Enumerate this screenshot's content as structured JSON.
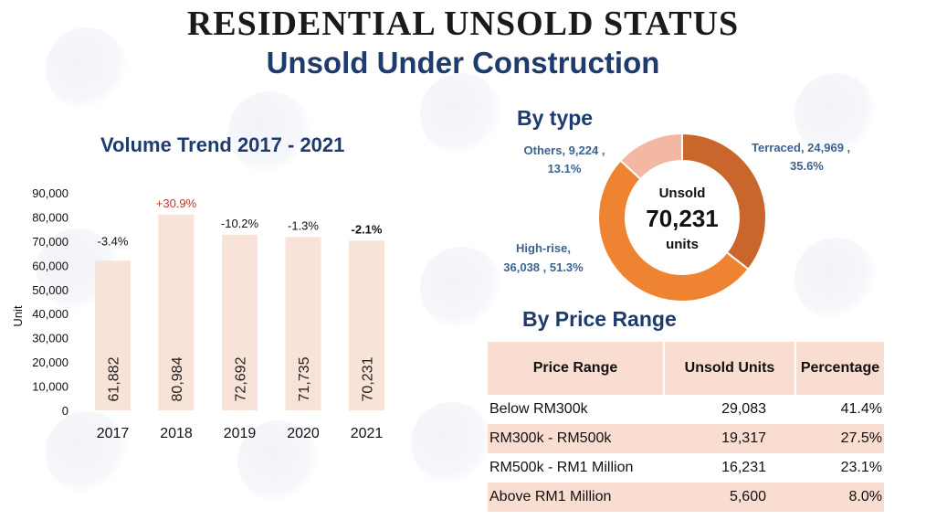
{
  "header": {
    "title": "RESIDENTIAL UNSOLD STATUS",
    "subtitle": "Unsold Under Construction"
  },
  "chart_data": [
    {
      "type": "bar",
      "title": "Volume Trend 2017 - 2021",
      "ylabel": "Unit",
      "categories": [
        "2017",
        "2018",
        "2019",
        "2020",
        "2021"
      ],
      "values": [
        61882,
        80984,
        72692,
        71735,
        70231
      ],
      "value_labels": [
        "61,882",
        "80,984",
        "72,692",
        "71,735",
        "70,231"
      ],
      "growth_labels": [
        "-3.4%",
        "+30.9%",
        "-10.2%",
        "-1.3%",
        "-2.1%"
      ],
      "ylim": [
        0,
        90000
      ],
      "yticks": [
        0,
        10000,
        20000,
        30000,
        40000,
        50000,
        60000,
        70000,
        80000,
        90000
      ],
      "ytick_labels": [
        "0",
        "10,000",
        "20,000",
        "30,000",
        "40,000",
        "50,000",
        "60,000",
        "70,000",
        "80,000",
        "90,000"
      ],
      "grid": false,
      "bar_color": "#f8e3d8",
      "positive_color": "#c0392b"
    },
    {
      "type": "pie",
      "title": "By type",
      "donut": true,
      "center_label": {
        "top": "Unsold",
        "value": "70,231",
        "bottom": "units"
      },
      "slices": [
        {
          "label": "Terraced",
          "value": 24969,
          "value_label": "24,969",
          "percent": "35.6%",
          "color": "#c8662c"
        },
        {
          "label": "High-rise",
          "value": 36038,
          "value_label": "36,038",
          "percent": "51.3%",
          "color": "#ee8332"
        },
        {
          "label": "Others",
          "value": 9224,
          "value_label": "9,224",
          "percent": "13.1%",
          "color": "#f3b8a1"
        }
      ]
    }
  ],
  "price_range": {
    "title": "By Price Range",
    "headers": [
      "Price Range",
      "Unsold Units",
      "Percentage"
    ],
    "rows": [
      {
        "range": "Below RM300k",
        "units": "29,083",
        "pct": "41.4%"
      },
      {
        "range": "RM300k - RM500k",
        "units": "19,317",
        "pct": "27.5%"
      },
      {
        "range": "RM500k - RM1 Million",
        "units": "16,231",
        "pct": "23.1%"
      },
      {
        "range": "Above RM1 Million",
        "units": "5,600",
        "pct": "8.0%"
      }
    ]
  }
}
